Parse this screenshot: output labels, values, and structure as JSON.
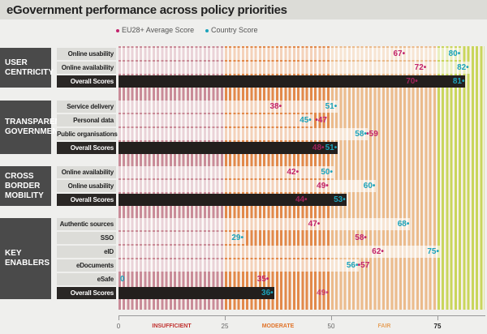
{
  "title": "eGovernment performance across policy priorities",
  "chart_data": {
    "type": "bar",
    "title": "eGovernment performance across policy priorities",
    "legend": [
      {
        "name": "EU28+ Average Score",
        "color": "#c2246c"
      },
      {
        "name": "Country Score",
        "color": "#1ba3bb"
      }
    ],
    "legend_placement": "top",
    "xlim": [
      0,
      86
    ],
    "xticks": [
      "0",
      "25",
      "50",
      "75"
    ],
    "zones": [
      {
        "label": "INSUFFICIENT",
        "from": 0,
        "to": 25,
        "color": "#c98b98",
        "label_color": "#c0302e"
      },
      {
        "label": "MODERATE",
        "from": 25,
        "to": 50,
        "color": "#e2894a",
        "label_color": "#e0742a"
      },
      {
        "label": "FAIR",
        "from": 50,
        "to": 75,
        "color": "#ebbb8c",
        "label_color": "#e6a25e"
      },
      {
        "label": "",
        "from": 75,
        "to": 86,
        "color": "#c9d65c",
        "label_color": "#222"
      }
    ],
    "groups": [
      {
        "name": "USER CENTRICITY",
        "rows": [
          {
            "label": "Online usability",
            "eu": 67,
            "country": 80
          },
          {
            "label": "Online availability",
            "eu": 72,
            "country": 82
          },
          {
            "label": "Overall Scores",
            "eu": 70,
            "country": 81,
            "overall": true
          }
        ]
      },
      {
        "name": "TRANSPARENT GOVERNMENT",
        "rows": [
          {
            "label": "Service delivery",
            "eu": 38,
            "country": 51
          },
          {
            "label": "Personal data",
            "eu": 47,
            "country": 45
          },
          {
            "label": "Public organisations",
            "eu": 59,
            "country": 58
          },
          {
            "label": "Overall Scores",
            "eu": 48,
            "country": 51,
            "overall": true
          }
        ]
      },
      {
        "name": "CROSS BORDER MOBILITY",
        "rows": [
          {
            "label": "Online availability",
            "eu": 42,
            "country": 50
          },
          {
            "label": "Online usability",
            "eu": 49,
            "country": 60
          },
          {
            "label": "Overall Scores",
            "eu": 44,
            "country": 53,
            "overall": true
          }
        ]
      },
      {
        "name": "KEY ENABLERS",
        "rows": [
          {
            "label": "Authentic sources",
            "eu": 47,
            "country": 68
          },
          {
            "label": "SSO",
            "eu": 58,
            "country": 29
          },
          {
            "label": "eID",
            "eu": 62,
            "country": 75
          },
          {
            "label": "eDocuments",
            "eu": 57,
            "country": 56
          },
          {
            "label": "eSafe",
            "eu": 35,
            "country": 0
          },
          {
            "label": "Overall Scores",
            "eu": 49,
            "country": 36,
            "overall": true
          }
        ]
      }
    ]
  }
}
